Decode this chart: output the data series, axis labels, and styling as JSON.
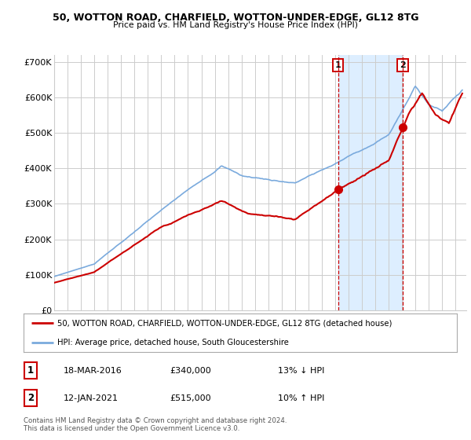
{
  "title": "50, WOTTON ROAD, CHARFIELD, WOTTON-UNDER-EDGE, GL12 8TG",
  "subtitle": "Price paid vs. HM Land Registry's House Price Index (HPI)",
  "legend_line1": "50, WOTTON ROAD, CHARFIELD, WOTTON-UNDER-EDGE, GL12 8TG (detached house)",
  "legend_line2": "HPI: Average price, detached house, South Gloucestershire",
  "transaction1_date": "18-MAR-2016",
  "transaction1_price": "£340,000",
  "transaction1_hpi": "13% ↓ HPI",
  "transaction1_year": 2016.21,
  "transaction1_value": 340000,
  "transaction2_date": "12-JAN-2021",
  "transaction2_price": "£515,000",
  "transaction2_hpi": "10% ↑ HPI",
  "transaction2_year": 2021.04,
  "transaction2_value": 515000,
  "footer": "Contains HM Land Registry data © Crown copyright and database right 2024.\nThis data is licensed under the Open Government Licence v3.0.",
  "hpi_color": "#7aaadd",
  "price_color": "#cc0000",
  "dot_color": "#cc0000",
  "shade_color": "#ddeeff",
  "dashed_color": "#cc0000",
  "background_color": "#ffffff",
  "grid_color": "#cccccc",
  "ylim": [
    0,
    720000
  ],
  "xlim_start": 1995.0,
  "xlim_end": 2025.8
}
